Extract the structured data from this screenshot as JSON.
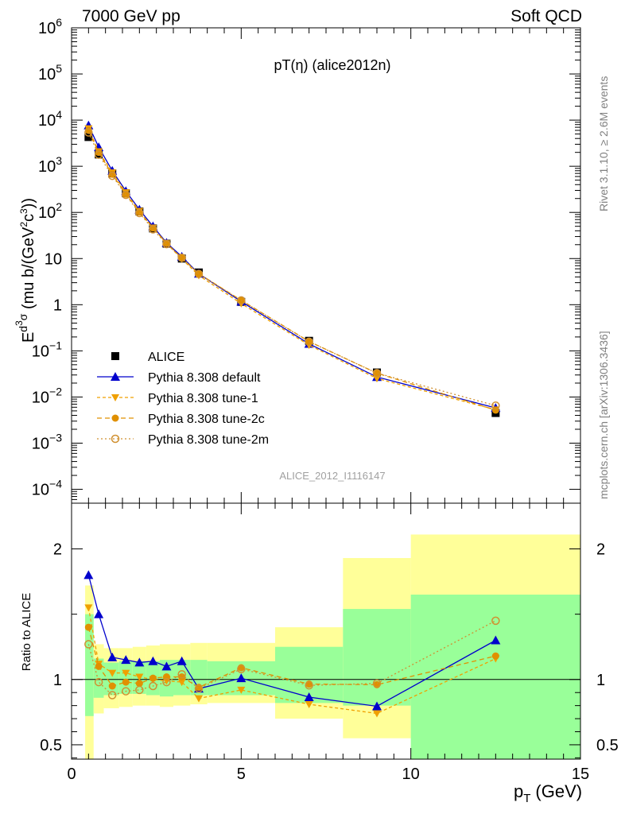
{
  "header": {
    "left": "7000 GeV pp",
    "right": "Soft QCD"
  },
  "main_title": "pT(η) (alice2012n)",
  "side_text_top": "Rivet 3.1.10, ≥ 2.6M events",
  "side_text_bottom": "mcplots.cern.ch [arXiv:1306.3436]",
  "watermark": "ALICE_2012_I1116147",
  "ratio_ylabel": "Ratio to ALICE",
  "xlabel": "p",
  "xlabel_sub": "T",
  "xlabel_unit": "(GeV)",
  "ylabel": "E d³σ / dp³ (mu b/(GeV²c³))",
  "colors": {
    "data": "#000000",
    "default": "#0000cc",
    "tune1": "#f0a000",
    "tune2c": "#e09000",
    "tune2m": "#d09030",
    "band_green": "#99ff99",
    "band_yellow": "#ffff99"
  },
  "chart_data": [
    {
      "type": "line",
      "scale": "log",
      "xlim": [
        0,
        15
      ],
      "ylim": [
        0.0001,
        1000000
      ],
      "y_ticks": [
        {
          "v": 0.0001,
          "base": "10",
          "exp": "−4"
        },
        {
          "v": 0.001,
          "base": "10",
          "exp": "−3"
        },
        {
          "v": 0.01,
          "base": "10",
          "exp": "−2"
        },
        {
          "v": 0.1,
          "base": "10",
          "exp": "−1"
        },
        {
          "v": 1,
          "base": "1",
          "exp": ""
        },
        {
          "v": 10,
          "base": "10",
          "exp": ""
        },
        {
          "v": 100,
          "base": "10",
          "exp": "2"
        },
        {
          "v": 1000,
          "base": "10",
          "exp": "3"
        },
        {
          "v": 10000,
          "base": "10",
          "exp": "4"
        },
        {
          "v": 100000,
          "base": "10",
          "exp": "5"
        },
        {
          "v": 1000000,
          "base": "10",
          "exp": "6"
        }
      ],
      "x": [
        0.5,
        0.8,
        1.2,
        1.6,
        2.0,
        2.4,
        2.8,
        3.25,
        3.75,
        5.0,
        7.0,
        9.0,
        12.5
      ],
      "series": [
        {
          "name": "ALICE",
          "key": "data",
          "values": [
            4300,
            1800,
            700,
            260,
            105,
            45,
            21,
            10,
            5.0,
            1.15,
            0.165,
            0.034,
            0.0045
          ]
        },
        {
          "name": "Pythia 8.308 default",
          "key": "default",
          "values": [
            7700,
            2600,
            800,
            290,
            115,
            50,
            22,
            11,
            4.7,
            1.17,
            0.142,
            0.0272,
            0.0058
          ]
        },
        {
          "name": "Pythia 8.308 tune-1",
          "key": "tune1",
          "values": [
            6600,
            2100,
            730,
            270,
            107,
            46,
            21.3,
            9.8,
            4.3,
            1.06,
            0.133,
            0.0252,
            0.0053
          ]
        },
        {
          "name": "Pythia 8.308 tune-2c",
          "key": "tune2c",
          "values": [
            6000,
            2000,
            670,
            250,
            102,
            46,
            21.5,
            10.2,
            4.7,
            1.25,
            0.16,
            0.0328,
            0.0052
          ]
        },
        {
          "name": "Pythia 8.308 tune-2m",
          "key": "tune2m",
          "values": [
            5400,
            1780,
            620,
            240,
            97,
            43,
            20.5,
            10.4,
            4.65,
            1.24,
            0.158,
            0.033,
            0.0065
          ]
        }
      ]
    },
    {
      "type": "line",
      "ylabel": "Ratio to ALICE",
      "xlabel": "p_T (GeV)",
      "xlim": [
        0,
        15
      ],
      "ylim": [
        0.39,
        2.35
      ],
      "x_ticks": [
        "0",
        "5",
        "10",
        "15"
      ],
      "y_ticks": [
        "0.5",
        "1",
        "2"
      ],
      "x": [
        0.5,
        0.8,
        1.2,
        1.6,
        2.0,
        2.4,
        2.8,
        3.25,
        3.75,
        5.0,
        7.0,
        9.0,
        12.5
      ],
      "bands": {
        "edges": [
          0.4,
          0.65,
          0.95,
          1.4,
          1.8,
          2.2,
          2.6,
          3.0,
          3.5,
          4.0,
          6.0,
          8.0,
          10.0,
          15.0
        ],
        "green_lo": [
          0.72,
          0.86,
          0.88,
          0.89,
          0.89,
          0.88,
          0.87,
          0.88,
          0.88,
          0.88,
          0.82,
          0.8,
          0.38
        ],
        "green_hi": [
          1.5,
          1.16,
          1.13,
          1.14,
          1.14,
          1.14,
          1.15,
          1.15,
          1.15,
          1.14,
          1.25,
          1.54,
          1.65
        ],
        "yellow_lo": [
          0.3,
          0.74,
          0.78,
          0.79,
          0.8,
          0.8,
          0.79,
          0.8,
          0.81,
          0.82,
          0.7,
          0.55,
          0.38
        ],
        "yellow_hi": [
          1.72,
          1.27,
          1.24,
          1.24,
          1.25,
          1.26,
          1.27,
          1.27,
          1.28,
          1.28,
          1.4,
          1.93,
          2.11
        ]
      },
      "series": [
        {
          "name": "Pythia 8.308 default",
          "key": "default",
          "values": [
            1.8,
            1.5,
            1.17,
            1.15,
            1.13,
            1.14,
            1.1,
            1.14,
            0.93,
            1.01,
            0.865,
            0.795,
            1.3
          ]
        },
        {
          "name": "Pythia 8.308 tune-1",
          "key": "tune1",
          "values": [
            1.55,
            1.12,
            1.05,
            1.05,
            1.02,
            1.0,
            0.99,
            0.98,
            0.855,
            0.92,
            0.81,
            0.74,
            1.16
          ]
        },
        {
          "name": "Pythia 8.308 tune-2c",
          "key": "tune2c",
          "values": [
            1.4,
            1.1,
            0.95,
            0.98,
            0.97,
            1.01,
            1.02,
            1.02,
            0.94,
            1.09,
            0.965,
            0.96,
            1.18
          ]
        },
        {
          "name": "Pythia 8.308 tune-2m",
          "key": "tune2m",
          "values": [
            1.27,
            0.98,
            0.88,
            0.91,
            0.92,
            0.95,
            0.98,
            1.04,
            0.93,
            1.08,
            0.955,
            0.97,
            1.45
          ]
        }
      ]
    }
  ]
}
